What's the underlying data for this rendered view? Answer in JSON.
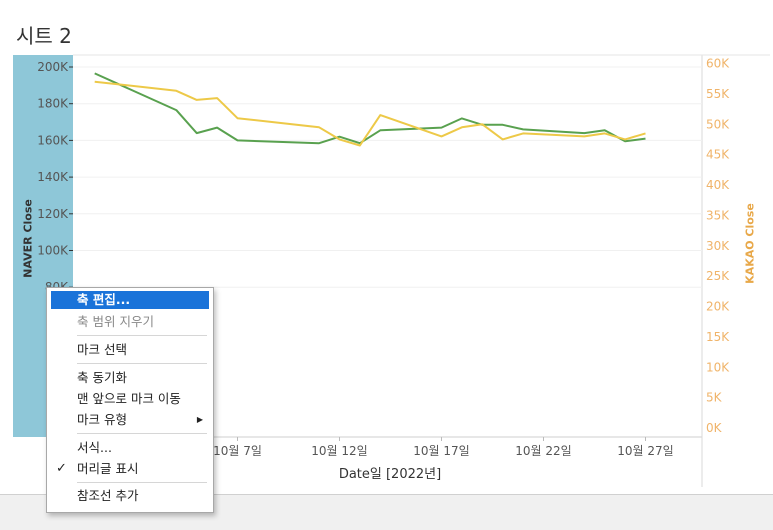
{
  "sheet_title": "시트 2",
  "chart_data": {
    "type": "line",
    "xlabel": "Date일 [2022년]",
    "ylabel_left": "NAVER Close",
    "ylabel_right": "KAKAO Close",
    "x_ticks": [
      "10월 7일",
      "10월 12일",
      "10월 17일",
      "10월 22일",
      "10월 27일"
    ],
    "y_left_ticks": [
      "200K",
      "180K",
      "160K",
      "140K",
      "120K",
      "100K",
      "80K"
    ],
    "y_right_ticks": [
      "60K",
      "55K",
      "50K",
      "45K",
      "40K",
      "35K",
      "30K",
      "25K",
      "20K",
      "15K",
      "10K",
      "5K",
      "0K"
    ],
    "ylim_left": [
      0,
      200000
    ],
    "ylim_right": [
      0,
      60000
    ],
    "x": [
      "2022-09-30",
      "2022-10-04",
      "2022-10-05",
      "2022-10-06",
      "2022-10-07",
      "2022-10-11",
      "2022-10-12",
      "2022-10-13",
      "2022-10-14",
      "2022-10-17",
      "2022-10-18",
      "2022-10-19",
      "2022-10-20",
      "2022-10-21",
      "2022-10-24",
      "2022-10-25",
      "2022-10-26",
      "2022-10-27"
    ],
    "series": [
      {
        "name": "NAVER Close",
        "axis": "left",
        "color": "#59a14f",
        "values": [
          196500,
          176500,
          164000,
          167000,
          160000,
          158500,
          162000,
          158500,
          165500,
          167000,
          172000,
          168500,
          168500,
          166000,
          164000,
          165500,
          159500,
          161000
        ]
      },
      {
        "name": "KAKAO Close",
        "axis": "right",
        "color": "#edc948",
        "values": [
          57000,
          55500,
          54000,
          54300,
          51000,
          49500,
          47500,
          46500,
          51500,
          48000,
          49500,
          50000,
          47500,
          48500,
          48000,
          48500,
          47500,
          48500
        ]
      }
    ]
  },
  "context_menu": {
    "items": [
      {
        "label": "축 편집...",
        "state": "highlighted"
      },
      {
        "label": "축 범위 지우기",
        "state": "disabled"
      },
      {
        "label": "마크 선택",
        "state": "normal"
      },
      {
        "label": "축 동기화",
        "state": "normal"
      },
      {
        "label": "맨 앞으로 마크 이동",
        "state": "normal"
      },
      {
        "label": "마크 유형",
        "state": "submenu"
      },
      {
        "label": "서식...",
        "state": "normal"
      },
      {
        "label": "머리글 표시",
        "state": "checked"
      },
      {
        "label": "참조선 추가",
        "state": "normal"
      }
    ]
  }
}
